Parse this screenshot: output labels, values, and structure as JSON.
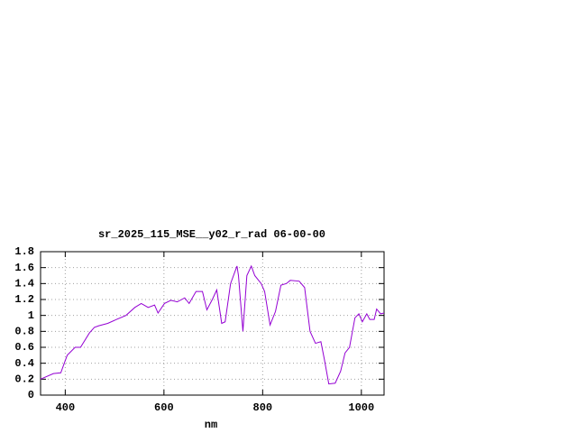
{
  "chart_data": {
    "type": "line",
    "title": "sr_2025_115_MSE__y02_r_rad 06-00-00",
    "x_label": "nm",
    "x": [
      350,
      376,
      391,
      398,
      404,
      420,
      431,
      449,
      459,
      468,
      486,
      504,
      523,
      541,
      554,
      568,
      581,
      588,
      601,
      614,
      627,
      642,
      651,
      665,
      678,
      687,
      698,
      707,
      717,
      724,
      735,
      748,
      751,
      760,
      768,
      777,
      784,
      797,
      804,
      815,
      826,
      837,
      848,
      856,
      874,
      885,
      896,
      907,
      918,
      925,
      934,
      947,
      958,
      967,
      976,
      987,
      995,
      1002,
      1011,
      1017,
      1026,
      1031,
      1039,
      1046
    ],
    "series": [
      {
        "color": "#9400d3",
        "values": [
          0.2,
          0.27,
          0.28,
          0.4,
          0.5,
          0.6,
          0.6,
          0.78,
          0.85,
          0.87,
          0.9,
          0.95,
          1.0,
          1.1,
          1.15,
          1.1,
          1.13,
          1.03,
          1.15,
          1.19,
          1.17,
          1.22,
          1.15,
          1.3,
          1.3,
          1.07,
          1.2,
          1.32,
          0.9,
          0.92,
          1.4,
          1.62,
          1.5,
          0.8,
          1.5,
          1.62,
          1.5,
          1.4,
          1.3,
          0.88,
          1.05,
          1.38,
          1.4,
          1.44,
          1.43,
          1.35,
          0.8,
          0.65,
          0.67,
          0.45,
          0.14,
          0.15,
          0.3,
          0.53,
          0.6,
          0.97,
          1.02,
          0.92,
          1.02,
          0.95,
          0.95,
          1.08,
          1.02,
          1.03
        ]
      }
    ],
    "xlim": [
      350,
      1046
    ],
    "ylim": [
      0,
      1.8
    ],
    "xticks": [
      400,
      600,
      800,
      1000
    ],
    "yticks": [
      0,
      0.2,
      0.4,
      0.6,
      0.8,
      1,
      1.2,
      1.4,
      1.6,
      1.8
    ],
    "grid": true
  }
}
